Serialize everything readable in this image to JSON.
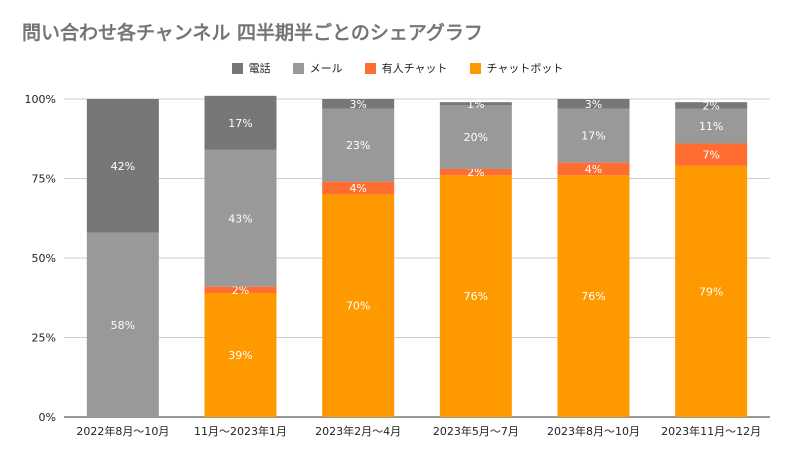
{
  "chart_data": {
    "type": "bar",
    "stacked": true,
    "normalized": true,
    "title": "問い合わせ各チャンネル 四半期半ごとのシェアグラフ",
    "categories": [
      "2022年8月～10月",
      "11月～2023年1月",
      "2023年2月～4月",
      "2023年5月～7月",
      "2023年8月～10月",
      "2023年11月～12月"
    ],
    "ylim": [
      0,
      100
    ],
    "yticks": [
      "0%",
      "25%",
      "50%",
      "75%",
      "100%"
    ],
    "ytick_values": [
      0,
      25,
      50,
      75,
      100
    ],
    "legend_position": "top-center",
    "series": [
      {
        "name": "チャットボット",
        "color": "#ff9900",
        "values": [
          0,
          39,
          70,
          76,
          76,
          79
        ],
        "labels": [
          "",
          "39%",
          "70%",
          "76%",
          "76%",
          "79%"
        ]
      },
      {
        "name": "有人チャット",
        "color": "#ff6d31",
        "values": [
          0,
          2,
          4,
          2,
          4,
          7
        ],
        "labels": [
          "",
          "2%",
          "4%",
          "2%",
          "4%",
          "7%"
        ]
      },
      {
        "name": "メール",
        "color": "#999999",
        "values": [
          58,
          43,
          23,
          20,
          17,
          11
        ],
        "labels": [
          "58%",
          "43%",
          "23%",
          "20%",
          "17%",
          "11%"
        ]
      },
      {
        "name": "電話",
        "color": "#777777",
        "values": [
          42,
          17,
          3,
          1,
          3,
          2
        ],
        "labels": [
          "42%",
          "17%",
          "3%",
          "1%",
          "3%",
          "2%"
        ]
      }
    ],
    "legend_order": [
      "電話",
      "メール",
      "有人チャット",
      "チャットボット"
    ]
  }
}
